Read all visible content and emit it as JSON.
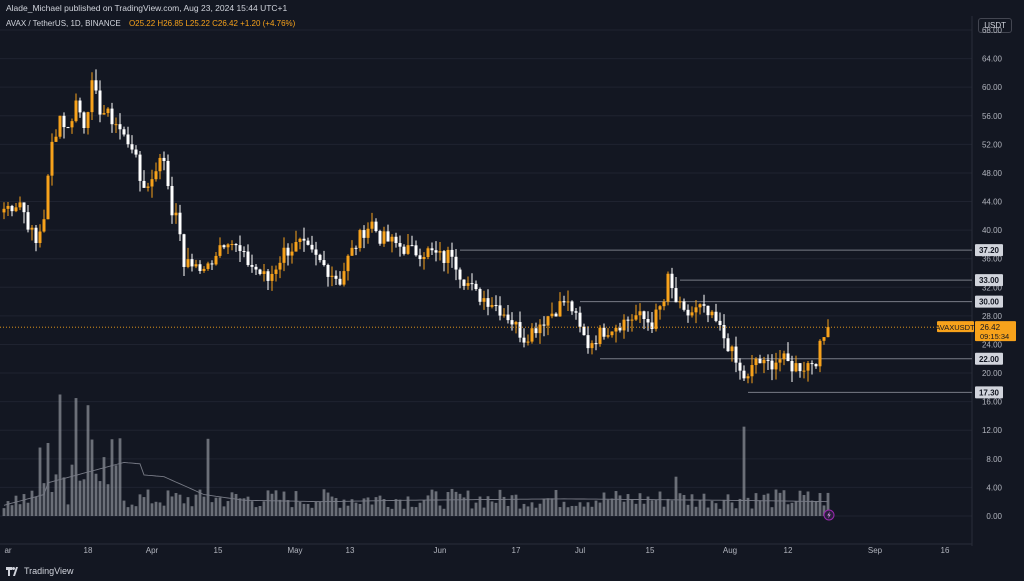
{
  "header": {
    "published": "Alade_Michael published on TradingView.com, Aug 23, 2024 15:44 UTC+1",
    "symbol": "AVAX / TetherUS, 1D, BINANCE",
    "ohlc": "O25.22 H26.85 L25.22 C26.42 +1.20 (+4.76%)",
    "currency_button": "USDT"
  },
  "footer": {
    "brand": "TradingView"
  },
  "colors": {
    "bg": "#131722",
    "up": "#f7a21b",
    "down": "#ffffff",
    "grid": "#1f2330",
    "level": "#787b86",
    "axis": "#b2b5be",
    "volume": "#8a8d96",
    "ma": "#787b86"
  },
  "chart_data": {
    "type": "candlestick",
    "symbol": "AVAXUSDT",
    "price_axis": {
      "min": 0,
      "max": 70,
      "ticks": [
        "68.00",
        "64.00",
        "60.00",
        "56.00",
        "52.00",
        "48.00",
        "44.00",
        "40.00",
        "36.00",
        "32.00",
        "28.00",
        "24.00",
        "20.00",
        "16.00",
        "12.00",
        "8.00",
        "4.00",
        "0.00"
      ]
    },
    "x_ticks": [
      "ar",
      "18",
      "Apr",
      "15",
      "May",
      "13",
      "Jun",
      "17",
      "Jul",
      "15",
      "Aug",
      "12",
      "Sep",
      "16"
    ],
    "levels": [
      {
        "label": "37.20",
        "value": 37.2,
        "from": "Jun"
      },
      {
        "label": "33.00",
        "value": 33.0,
        "from": "Jul 22"
      },
      {
        "label": "30.00",
        "value": 30.0,
        "from": "Jul 1"
      },
      {
        "label": "22.00",
        "value": 22.0,
        "from": "Jul 5"
      },
      {
        "label": "17.30",
        "value": 17.3,
        "from": "Aug 5"
      }
    ],
    "last_price": {
      "symbol_label": "AVAXUSDT",
      "price": "26.42",
      "countdown": "09:15:34",
      "value": 26.42
    },
    "close_path": [
      [
        0,
        43
      ],
      [
        4,
        44
      ],
      [
        8,
        38
      ],
      [
        10,
        42
      ],
      [
        12,
        52
      ],
      [
        14,
        56
      ],
      [
        16,
        54
      ],
      [
        18,
        58
      ],
      [
        20,
        55
      ],
      [
        22,
        60
      ],
      [
        24,
        57
      ],
      [
        26,
        56
      ],
      [
        28,
        55
      ],
      [
        30,
        53
      ],
      [
        32,
        52
      ],
      [
        34,
        47
      ],
      [
        36,
        46
      ],
      [
        38,
        49
      ],
      [
        40,
        50
      ],
      [
        42,
        43
      ],
      [
        44,
        40
      ],
      [
        45,
        34
      ],
      [
        46,
        36
      ],
      [
        50,
        34
      ],
      [
        54,
        38
      ],
      [
        56,
        39
      ],
      [
        60,
        36
      ],
      [
        64,
        34
      ],
      [
        66,
        33
      ],
      [
        70,
        37
      ],
      [
        74,
        38
      ],
      [
        78,
        36
      ],
      [
        82,
        34
      ],
      [
        84,
        33
      ],
      [
        86,
        36
      ],
      [
        88,
        38
      ],
      [
        90,
        40
      ],
      [
        92,
        41
      ],
      [
        94,
        39
      ],
      [
        98,
        38
      ],
      [
        102,
        37
      ],
      [
        106,
        37
      ],
      [
        110,
        36
      ],
      [
        112,
        37
      ],
      [
        114,
        34
      ],
      [
        118,
        31
      ],
      [
        122,
        30
      ],
      [
        126,
        28
      ],
      [
        130,
        25
      ],
      [
        132,
        26
      ],
      [
        136,
        28
      ],
      [
        140,
        30
      ],
      [
        142,
        29
      ],
      [
        144,
        26
      ],
      [
        146,
        24
      ],
      [
        150,
        26
      ],
      [
        154,
        27
      ],
      [
        158,
        28
      ],
      [
        162,
        27
      ],
      [
        165,
        30
      ],
      [
        166,
        33
      ],
      [
        168,
        30
      ],
      [
        170,
        28
      ],
      [
        174,
        29
      ],
      [
        178,
        27
      ],
      [
        181,
        24
      ],
      [
        184,
        20
      ],
      [
        186,
        19
      ],
      [
        188,
        22
      ],
      [
        190,
        21
      ],
      [
        194,
        22
      ],
      [
        197,
        21
      ],
      [
        200,
        21
      ],
      [
        203,
        22
      ],
      [
        205,
        25
      ],
      [
        206,
        26.42
      ]
    ],
    "ma_path": [
      [
        0,
        1.5
      ],
      [
        10,
        3
      ],
      [
        20,
        4.5
      ],
      [
        30,
        6
      ],
      [
        40,
        5.5
      ],
      [
        50,
        3
      ],
      [
        60,
        2.2
      ],
      [
        80,
        2
      ],
      [
        100,
        2.2
      ],
      [
        120,
        2.3
      ],
      [
        140,
        2.4
      ],
      [
        160,
        2.3
      ],
      [
        180,
        2.2
      ],
      [
        195,
        2.1
      ],
      [
        206,
        2.0
      ]
    ]
  }
}
